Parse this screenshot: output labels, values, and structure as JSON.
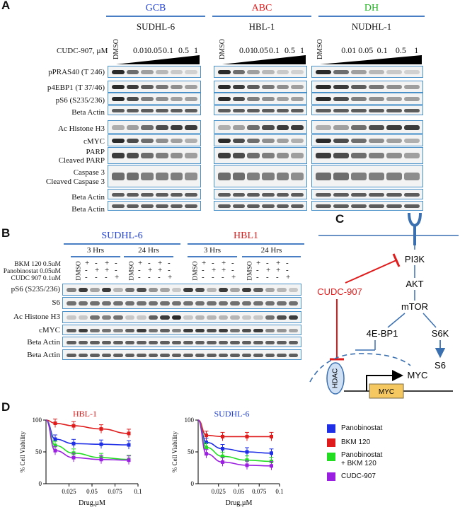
{
  "panel_a": {
    "label": "A",
    "groups": [
      {
        "type": "GCB",
        "type_color": "#1f3fd1",
        "cell_line": "SUDHL-6"
      },
      {
        "type": "ABC",
        "type_color": "#e01b1b",
        "cell_line": "HBL-1"
      },
      {
        "type": "DH",
        "type_color": "#22b022",
        "cell_line": "NUDHL-1"
      }
    ],
    "dose_label": "CUDC-907, µM",
    "doses": [
      "DMSO",
      "0.01",
      "0.05",
      "0.1",
      "0.5",
      "1"
    ],
    "rows": [
      "pPRAS40 (T 246)",
      "p4EBP1 (T 37/46)",
      "pS6 (S235/236)",
      "Beta Actin",
      "Ac Histone H3",
      "cMYC",
      "PARP",
      "Cleaved PARP",
      "Caspase 3",
      "Cleaved Caspase 3",
      "Beta Actin",
      "Beta Actin"
    ]
  },
  "panel_b": {
    "label": "B",
    "cell_lines": [
      {
        "name": "SUDHL-6",
        "color": "#1f3fd1"
      },
      {
        "name": "HBL1",
        "color": "#e01b1b"
      }
    ],
    "times": [
      "3 Hrs",
      "24 Hrs",
      "3 Hrs",
      "24 Hrs"
    ],
    "treatments": [
      "BKM 120 0.5uM",
      "Panobinostat 0.05uM",
      "CUDC 907 0.1uM"
    ],
    "dmso": "DMSO",
    "plus": "+",
    "minus": "-",
    "rows": [
      "pS6 (S235/236)",
      "S6",
      "Ac Histone H3",
      "cMYC",
      "Beta Actin",
      "Beta Actin"
    ]
  },
  "panel_c": {
    "label": "C",
    "drug": "CUDC-907",
    "nodes": {
      "pi3k": "PI3K",
      "akt": "AKT",
      "mtor": "mTOR",
      "ebp1": "4E-BP1",
      "s6k": "S6K",
      "s6": "S6",
      "hdac": "HDAC",
      "myc_out": "MYC",
      "myc_gene": "MYC"
    }
  },
  "panel_d": {
    "label": "D",
    "ylabel": "% Cell Viability",
    "xlabel": "Drug,µM",
    "legend": [
      "Panobinostat",
      "BKM 120",
      "Panobinostat\n+ BKM 120",
      "CUDC-907"
    ],
    "legend_colors": [
      "#1f2fe6",
      "#e01b1b",
      "#22dd22",
      "#9b1fe0"
    ]
  },
  "chart_data": [
    {
      "type": "line",
      "title": "HBL-1",
      "title_color": "#e01b1b",
      "xlabel": "Drug,µM",
      "ylabel": "% Cell Viability",
      "xlim": [
        0,
        0.1
      ],
      "ylim": [
        0,
        100
      ],
      "xticks": [
        "0.025",
        "0.05",
        "0.075",
        "0.1"
      ],
      "yticks": [
        "0",
        "50",
        "100"
      ],
      "x": [
        0.0,
        0.01,
        0.03,
        0.06,
        0.09
      ],
      "series": [
        {
          "name": "Panobinostat",
          "color": "#1f2fe6",
          "values": [
            100,
            70,
            63,
            62,
            61
          ]
        },
        {
          "name": "BKM 120",
          "color": "#e01b1b",
          "values": [
            100,
            95,
            91,
            86,
            79
          ]
        },
        {
          "name": "Panobinostat + BKM 120",
          "color": "#22dd22",
          "values": [
            100,
            60,
            48,
            41,
            38
          ]
        },
        {
          "name": "CUDC-907",
          "color": "#9b1fe0",
          "values": [
            100,
            52,
            41,
            38,
            37
          ]
        }
      ]
    },
    {
      "type": "line",
      "title": "SUDHL-6",
      "title_color": "#1f3fd1",
      "xlabel": "Drug,µM",
      "ylabel": "% Cell Viability",
      "xlim": [
        0,
        0.1
      ],
      "ylim": [
        0,
        100
      ],
      "xticks": [
        "0.025",
        "0.05",
        "0.075",
        "0.1"
      ],
      "yticks": [
        "0",
        "50",
        "100"
      ],
      "x": [
        0.0,
        0.01,
        0.03,
        0.06,
        0.09
      ],
      "series": [
        {
          "name": "Panobinostat",
          "color": "#1f2fe6",
          "values": [
            100,
            65,
            55,
            50,
            48
          ]
        },
        {
          "name": "BKM 120",
          "color": "#e01b1b",
          "values": [
            100,
            76,
            74,
            74,
            74
          ]
        },
        {
          "name": "Panobinostat + BKM 120",
          "color": "#22dd22",
          "values": [
            100,
            57,
            43,
            37,
            35
          ]
        },
        {
          "name": "CUDC-907",
          "color": "#9b1fe0",
          "values": [
            100,
            47,
            34,
            29,
            28
          ]
        }
      ]
    }
  ]
}
